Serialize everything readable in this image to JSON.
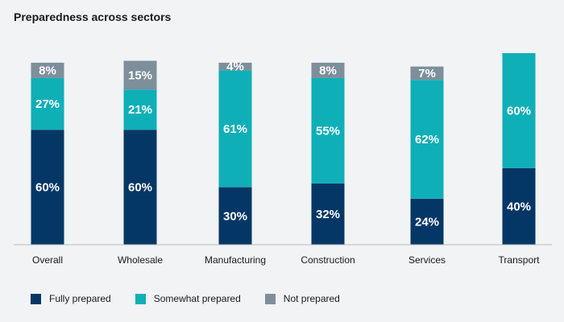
{
  "chart_data": {
    "type": "bar",
    "stacked": true,
    "title": "Preparedness across sectors",
    "categories": [
      "Overall",
      "Wholesale",
      "Manufacturing",
      "Construction",
      "Services",
      "Transport"
    ],
    "series": [
      {
        "name": "Fully prepared",
        "color": "#053766",
        "values": [
          60,
          60,
          30,
          32,
          24,
          40
        ]
      },
      {
        "name": "Somewhat prepared",
        "color": "#0fafb8",
        "values": [
          27,
          21,
          61,
          55,
          62,
          60
        ]
      },
      {
        "name": "Not prepared",
        "color": "#7d8f9b",
        "values": [
          8,
          15,
          4,
          8,
          7,
          0
        ]
      }
    ],
    "labels": [
      [
        "60%",
        "27%",
        "8%"
      ],
      [
        "60%",
        "21%",
        "15%"
      ],
      [
        "30%",
        "61%",
        "4%"
      ],
      [
        "32%",
        "55%",
        "8%"
      ],
      [
        "24%",
        "62%",
        "7%"
      ],
      [
        "40%",
        "60%",
        ""
      ]
    ],
    "ylim": [
      0,
      100
    ],
    "xlabel": "",
    "ylabel": "",
    "legend_position": "bottom-left"
  }
}
